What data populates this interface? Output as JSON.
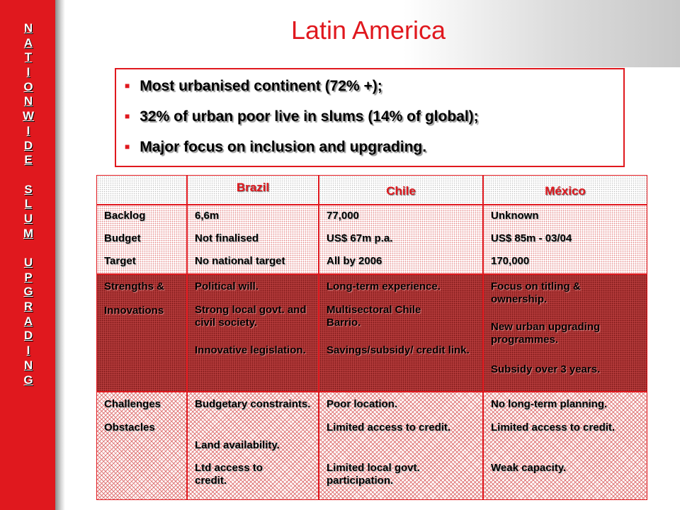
{
  "sidebar": {
    "letters": [
      "N",
      "A",
      "T",
      "I",
      "O",
      "N",
      "W",
      "I",
      "D",
      "E",
      "",
      "S",
      "L",
      "U",
      "M",
      "",
      "U",
      "P",
      "G",
      "R",
      "A",
      "D",
      "I",
      "N",
      "G"
    ]
  },
  "title": "Latin America",
  "bullets": [
    "Most urbanised continent (72% +);",
    "32% of urban poor live in slums (14% of global);",
    "Major focus on inclusion and upgrading."
  ],
  "table": {
    "headers": [
      "Brazil",
      "Chile",
      "México"
    ],
    "rows": [
      {
        "labels": [
          "Backlog",
          "Budget",
          "Target"
        ],
        "brazil": [
          "6,6m",
          "Not finalised",
          "No national target"
        ],
        "chile": [
          "77,000",
          "US$ 67m  p.a.",
          "All by 2006"
        ],
        "mexico": [
          "Unknown",
          "US$ 85m  -  03/04",
          "170,000"
        ]
      },
      {
        "labels": [
          "Strengths &",
          "Innovations"
        ],
        "brazil": [
          "Political will.",
          "Strong local govt. and civil society.",
          "Innovative legislation."
        ],
        "chile": [
          "Long-term experience.",
          "Multisectoral Chile Barrio.",
          "Savings/subsidy/ credit link."
        ],
        "mexico": [
          "Focus on titling & ownership.",
          "New urban upgrading programmes.",
          "Subsidy over 3 years."
        ]
      },
      {
        "labels": [
          "Challenges",
          "Obstacles"
        ],
        "brazil": [
          "Budgetary constraints.",
          "Land availability.",
          "Ltd access to credit."
        ],
        "chile": [
          "Poor location.",
          "Limited access to credit.",
          "Limited local govt. participation."
        ],
        "mexico": [
          "No long-term planning.",
          "Limited access to credit.",
          "Weak capacity."
        ]
      }
    ]
  },
  "colors": {
    "accent": "#e0181e",
    "dark_row": "#b33a3a"
  }
}
